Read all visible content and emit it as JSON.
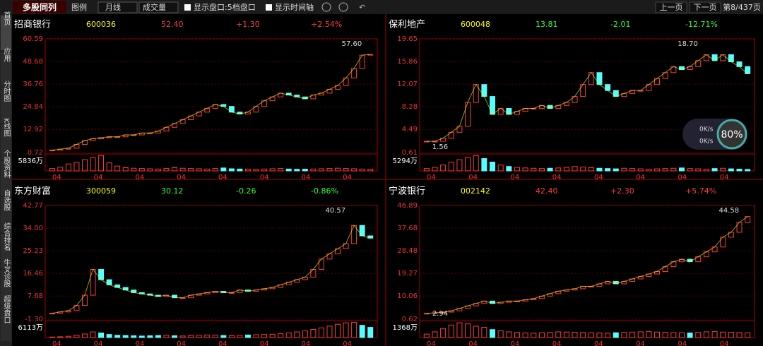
{
  "toolbar": {
    "title": "多股同列",
    "legend": "图例",
    "period": "月线",
    "indicator": "成交量",
    "show_book": "显示盘口:5档盘口",
    "show_time": "显示时间轴",
    "prev": "上一页",
    "next": "下一页",
    "page": "第8/437页"
  },
  "sidebar": [
    "首页",
    "应用",
    "分时图",
    "K线图",
    "个股资料",
    "自选股",
    "综合排名",
    "牛叉诊股",
    "超级盘口"
  ],
  "net": {
    "up": "0K/s",
    "down": "0K/s",
    "pct": "80%"
  },
  "panels": [
    {
      "name": "招商银行",
      "code": "600036",
      "price": "52.40",
      "change": "+1.30",
      "pct": "+2.54%",
      "dir": "up",
      "yticks": [
        60.59,
        48.68,
        36.76,
        24.84,
        12.92,
        0.72
      ],
      "ylim": [
        0.72,
        60.59
      ],
      "high": "57.60",
      "low": null,
      "vlim": [
        0,
        5836
      ],
      "vlabel": "5836万",
      "xlabels": [
        "04",
        "04",
        "04",
        "04",
        "04",
        "04",
        "04",
        "04"
      ],
      "closes": [
        2,
        2.5,
        3,
        5,
        7,
        8,
        8.5,
        9,
        9,
        10,
        10,
        11,
        11,
        12,
        14,
        16,
        18,
        20,
        22,
        24,
        26,
        25,
        22,
        21,
        22,
        25,
        28,
        30,
        32,
        31,
        30,
        29,
        31,
        32,
        34,
        36,
        40,
        45,
        52,
        52.4
      ],
      "volumes": [
        900,
        1400,
        2600,
        3200,
        4200,
        5000,
        5800,
        3000,
        1800,
        1200,
        1000,
        900,
        800,
        700,
        900,
        1200,
        1000,
        900,
        800,
        700,
        900,
        1100,
        800,
        700,
        650,
        600,
        700,
        800,
        900,
        700,
        600,
        650,
        700,
        800,
        900,
        1000,
        900,
        800,
        700,
        600
      ]
    },
    {
      "name": "保利地产",
      "code": "600048",
      "price": "13.81",
      "change": "-2.01",
      "pct": "-12.71%",
      "dir": "down",
      "yticks": [
        19.65,
        15.86,
        12.07,
        8.28,
        4.49,
        0.61
      ],
      "ylim": [
        0.61,
        19.65
      ],
      "high": "18.70",
      "low": "1.56",
      "vlim": [
        0,
        5294
      ],
      "vlabel": "5294万",
      "xlabels": [
        "04",
        "04",
        "04",
        "04",
        "04",
        "04",
        "04",
        "04"
      ],
      "closes": [
        2.5,
        2.5,
        3,
        4,
        5,
        9,
        12,
        10,
        7,
        8,
        7,
        7.5,
        8,
        8,
        8.5,
        8,
        8.5,
        9,
        10,
        12,
        14,
        12,
        11,
        10,
        10.5,
        11,
        11,
        12,
        13,
        14,
        15,
        14.5,
        15,
        16,
        17,
        16,
        17,
        15.8,
        15,
        13.81
      ],
      "volumes": [
        800,
        1200,
        2000,
        3000,
        3800,
        4600,
        5200,
        4200,
        3000,
        2000,
        1500,
        1200,
        1000,
        900,
        800,
        900,
        1000,
        1200,
        1500,
        1300,
        1100,
        900,
        800,
        700,
        900,
        800,
        700,
        600,
        700,
        800,
        900,
        1000,
        800,
        700,
        600,
        800,
        900,
        700,
        600,
        500
      ]
    },
    {
      "name": "东方财富",
      "code": "300059",
      "price": "30.12",
      "change": "-0.26",
      "pct": "-0.86%",
      "dir": "down",
      "yticks": [
        42.77,
        {
          "value": 34,
          "label": "34.00"
        },
        25.23,
        16.46,
        7.68,
        {
          "value": -1.3,
          "label": "-1.30"
        }
      ],
      "ylim": [
        -1.3,
        42.77
      ],
      "high": "40.57",
      "low": null,
      "vlim": [
        0,
        6113
      ],
      "vlabel": "6113万",
      "xlabels": [
        "04",
        "04",
        "04",
        "04",
        "04",
        "04",
        "04",
        "04"
      ],
      "closes": [
        1,
        1.5,
        2,
        4,
        8,
        18,
        14,
        12,
        11,
        10,
        9,
        8.5,
        8,
        7.5,
        8,
        7,
        7,
        8,
        8.5,
        9,
        9.5,
        9,
        9,
        10,
        9.5,
        10,
        10.5,
        11,
        12,
        13,
        14,
        15,
        18,
        22,
        24,
        26,
        28,
        35,
        31,
        30.12
      ],
      "volumes": [
        200,
        300,
        500,
        900,
        1400,
        2200,
        1800,
        1200,
        900,
        800,
        700,
        600,
        700,
        800,
        900,
        700,
        600,
        800,
        900,
        1000,
        900,
        800,
        700,
        900,
        1000,
        1100,
        1200,
        1300,
        1500,
        1800,
        2200,
        2600,
        3200,
        3800,
        4500,
        5200,
        5800,
        6000,
        4800,
        4000
      ]
    },
    {
      "name": "宁波银行",
      "code": "002142",
      "price": "42.40",
      "change": "+2.30",
      "pct": "+5.74%",
      "dir": "up",
      "yticks": [
        46.89,
        37.68,
        28.48,
        19.27,
        10.06,
        0.62
      ],
      "ylim": [
        0.62,
        46.89
      ],
      "high": "44.58",
      "low": "2.94",
      "vlim": [
        0,
        1368
      ],
      "vlabel": "1368万",
      "xlabels": [
        "04",
        "04",
        "04",
        "04",
        "04",
        "04",
        "04",
        "04"
      ],
      "closes": [
        3,
        3.2,
        3.5,
        4,
        5,
        6,
        7,
        8,
        7,
        7.5,
        8,
        8,
        8.5,
        9,
        10,
        11,
        12,
        12.5,
        13,
        14,
        14,
        15,
        16,
        15,
        16,
        17,
        18,
        19,
        20,
        22,
        24,
        25,
        24,
        26,
        28,
        30,
        34,
        36,
        40,
        42.4
      ],
      "volumes": [
        300,
        500,
        800,
        1100,
        1300,
        1200,
        1000,
        900,
        700,
        600,
        500,
        450,
        400,
        380,
        420,
        450,
        500,
        480,
        460,
        440,
        420,
        400,
        380,
        420,
        450,
        480,
        500,
        520,
        480,
        460,
        440,
        420,
        400,
        450,
        500,
        520,
        480,
        460,
        440,
        420
      ]
    }
  ]
}
